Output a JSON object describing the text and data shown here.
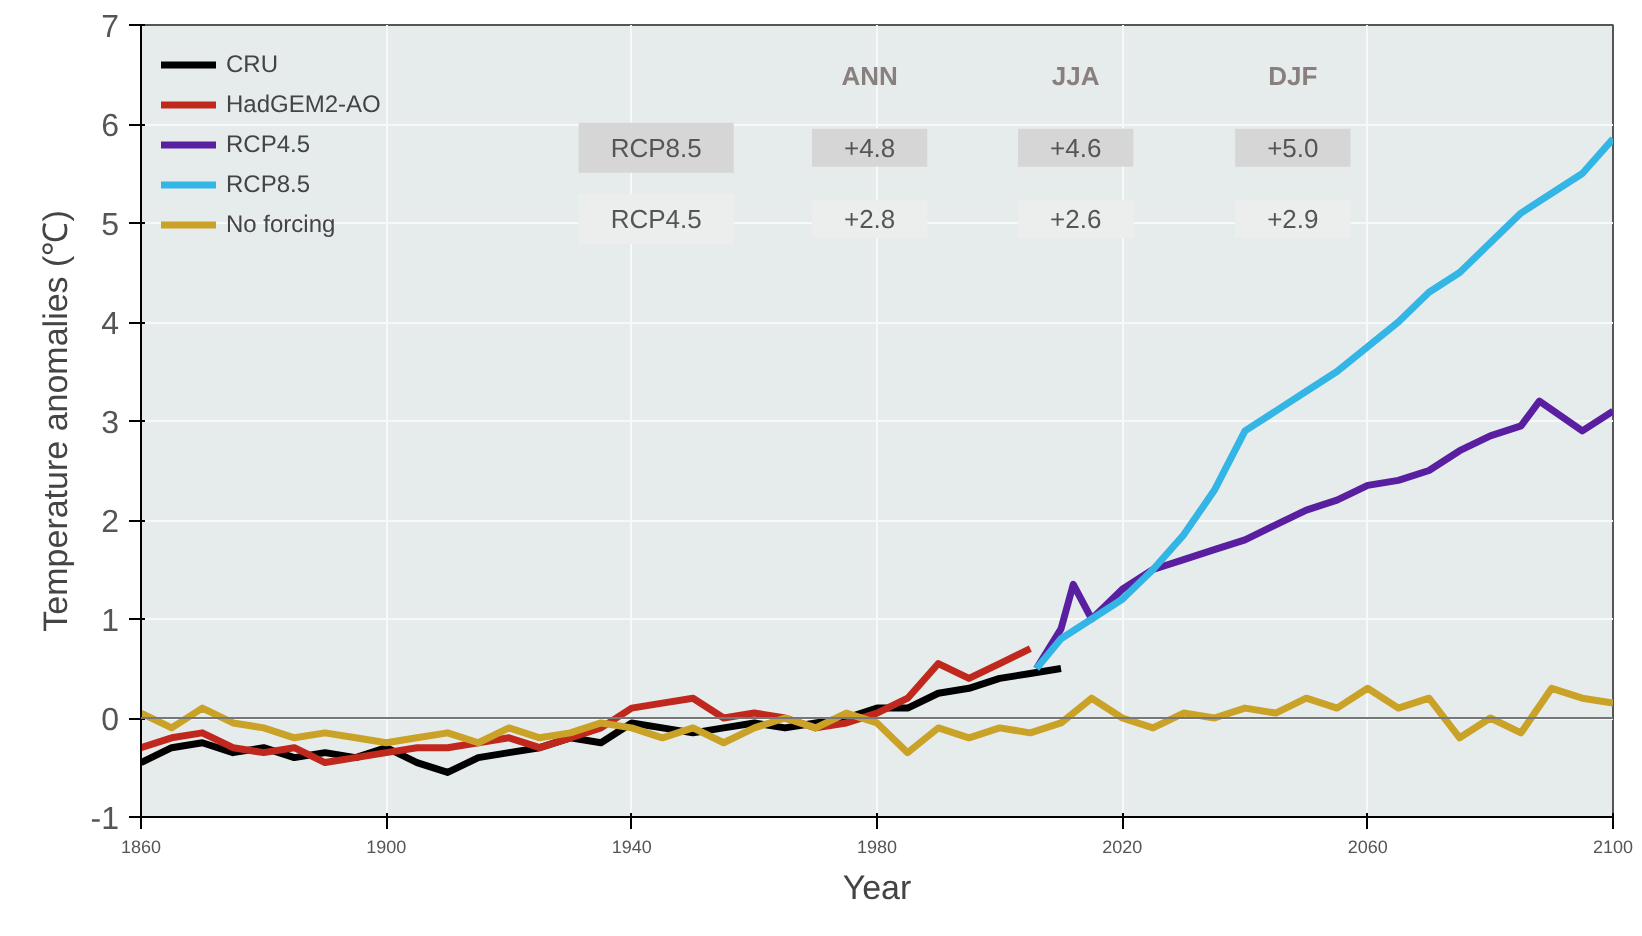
{
  "chart_data": {
    "type": "line",
    "xlabel": "Year",
    "ylabel": "Temperature anomalies (℃)",
    "xlim": [
      1860,
      2100
    ],
    "ylim": [
      -1,
      7
    ],
    "xticks": [
      1860,
      1900,
      1940,
      1980,
      2020,
      2060,
      2100
    ],
    "yticks": [
      -1,
      0,
      1,
      2,
      3,
      4,
      5,
      6,
      7
    ],
    "grid": true,
    "legend": "top left",
    "line_style": "solid",
    "ref_lines": [
      {
        "axis": "y",
        "value": 0,
        "color": "#777777"
      }
    ],
    "annotations": [
      "ANN",
      "JJA",
      "DJF",
      "RCP8.5",
      "+4.8",
      "+4.6",
      "+5.0",
      "RCP4.5",
      "+2.8",
      "+2.6",
      "+2.9"
    ],
    "series": [
      {
        "name": "CRU",
        "color": "#000000",
        "x": [
          1860,
          1865,
          1870,
          1875,
          1880,
          1885,
          1890,
          1895,
          1900,
          1905,
          1910,
          1915,
          1920,
          1925,
          1930,
          1935,
          1940,
          1945,
          1950,
          1955,
          1960,
          1965,
          1970,
          1975,
          1980,
          1985,
          1990,
          1995,
          2000,
          2005,
          2010
        ],
        "values": [
          -0.45,
          -0.3,
          -0.25,
          -0.35,
          -0.3,
          -0.4,
          -0.35,
          -0.4,
          -0.3,
          -0.45,
          -0.55,
          -0.4,
          -0.35,
          -0.3,
          -0.2,
          -0.25,
          -0.05,
          -0.1,
          -0.15,
          -0.1,
          -0.05,
          -0.1,
          -0.05,
          0.0,
          0.1,
          0.1,
          0.25,
          0.3,
          0.4,
          0.45,
          0.5
        ]
      },
      {
        "name": "HadGEM2-AO",
        "color": "#c0281e",
        "x": [
          1860,
          1865,
          1870,
          1875,
          1880,
          1885,
          1890,
          1895,
          1900,
          1905,
          1910,
          1915,
          1920,
          1925,
          1930,
          1935,
          1940,
          1945,
          1950,
          1955,
          1960,
          1965,
          1970,
          1975,
          1980,
          1985,
          1990,
          1995,
          2000,
          2005
        ],
        "values": [
          -0.3,
          -0.2,
          -0.15,
          -0.3,
          -0.35,
          -0.3,
          -0.45,
          -0.4,
          -0.35,
          -0.3,
          -0.3,
          -0.25,
          -0.2,
          -0.3,
          -0.2,
          -0.1,
          0.1,
          0.15,
          0.2,
          0.0,
          0.05,
          0.0,
          -0.1,
          -0.05,
          0.05,
          0.2,
          0.55,
          0.4,
          0.55,
          0.7
        ]
      },
      {
        "name": "RCP4.5",
        "color": "#5a1fa0",
        "x": [
          2006,
          2010,
          2012,
          2015,
          2020,
          2025,
          2030,
          2035,
          2040,
          2045,
          2050,
          2055,
          2060,
          2065,
          2070,
          2075,
          2080,
          2085,
          2088,
          2095,
          2100
        ],
        "values": [
          0.5,
          0.9,
          1.35,
          1.0,
          1.3,
          1.5,
          1.6,
          1.7,
          1.8,
          1.95,
          2.1,
          2.2,
          2.35,
          2.4,
          2.5,
          2.7,
          2.85,
          2.95,
          3.2,
          2.9,
          3.1
        ]
      },
      {
        "name": "RCP8.5",
        "color": "#33b5e5",
        "x": [
          2006,
          2010,
          2015,
          2020,
          2025,
          2030,
          2035,
          2040,
          2045,
          2050,
          2055,
          2060,
          2065,
          2070,
          2075,
          2080,
          2085,
          2090,
          2095,
          2100
        ],
        "values": [
          0.5,
          0.8,
          1.0,
          1.2,
          1.5,
          1.85,
          2.3,
          2.9,
          3.1,
          3.3,
          3.5,
          3.75,
          4.0,
          4.3,
          4.5,
          4.8,
          5.1,
          5.3,
          5.5,
          5.85
        ]
      },
      {
        "name": "No forcing",
        "color": "#c9a227",
        "x": [
          1860,
          1865,
          1870,
          1875,
          1880,
          1885,
          1890,
          1895,
          1900,
          1905,
          1910,
          1915,
          1920,
          1925,
          1930,
          1935,
          1940,
          1945,
          1950,
          1955,
          1960,
          1965,
          1970,
          1975,
          1980,
          1985,
          1990,
          1995,
          2000,
          2005,
          2010,
          2015,
          2020,
          2025,
          2030,
          2035,
          2040,
          2045,
          2050,
          2055,
          2060,
          2065,
          2070,
          2075,
          2080,
          2085,
          2090,
          2095,
          2100
        ],
        "values": [
          0.05,
          -0.1,
          0.1,
          -0.05,
          -0.1,
          -0.2,
          -0.15,
          -0.2,
          -0.25,
          -0.2,
          -0.15,
          -0.25,
          -0.1,
          -0.2,
          -0.15,
          -0.05,
          -0.1,
          -0.2,
          -0.1,
          -0.25,
          -0.1,
          0.0,
          -0.1,
          0.05,
          -0.05,
          -0.35,
          -0.1,
          -0.2,
          -0.1,
          -0.15,
          -0.05,
          0.2,
          0.0,
          -0.1,
          0.05,
          0.0,
          0.1,
          0.05,
          0.2,
          0.1,
          0.3,
          0.1,
          0.2,
          -0.2,
          0.0,
          -0.15,
          0.3,
          0.2,
          0.15
        ]
      }
    ]
  }
}
